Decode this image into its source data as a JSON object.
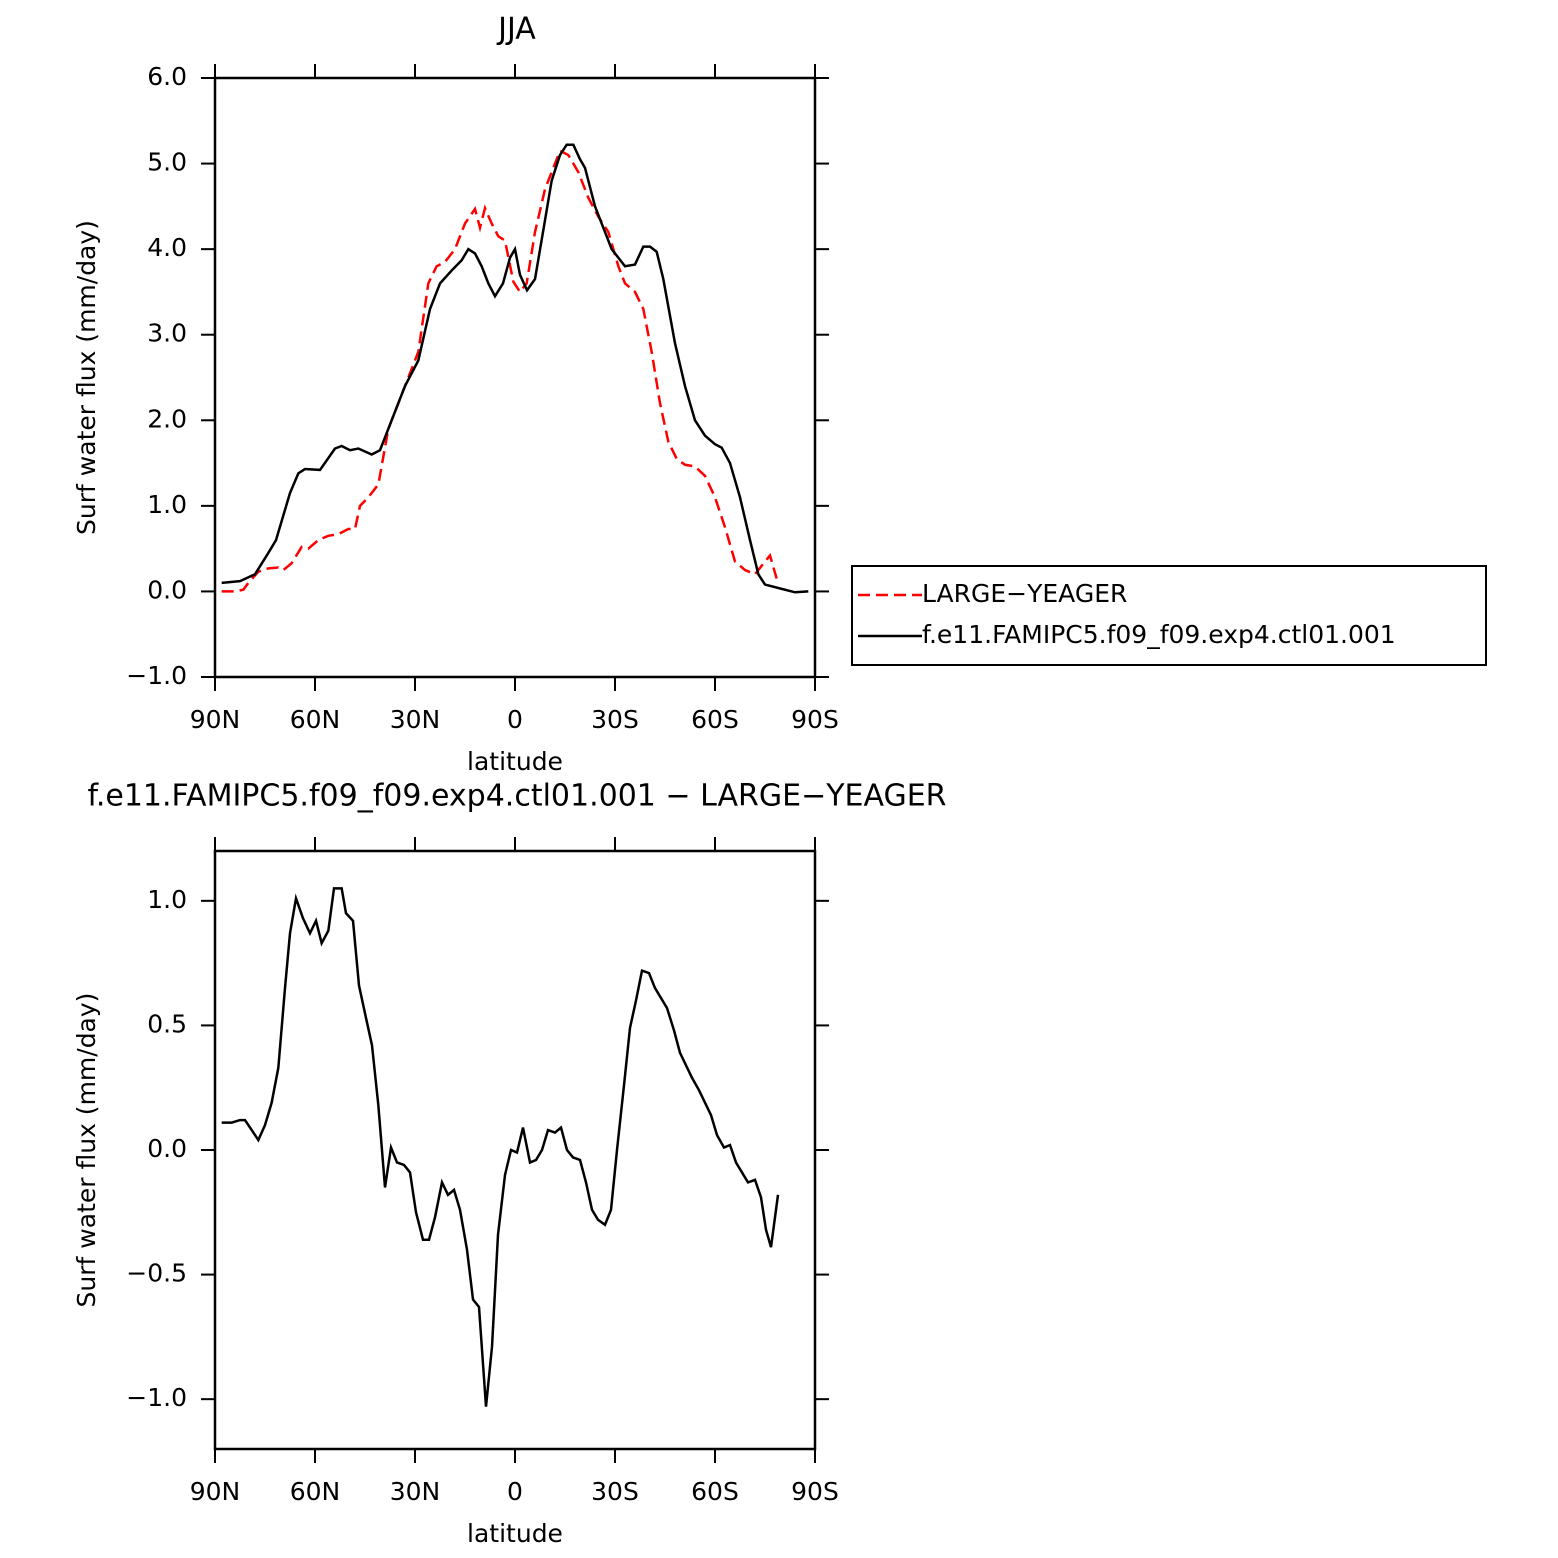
{
  "chart_data": [
    {
      "type": "line",
      "title": "JJA",
      "xlabel": "latitude",
      "ylabel": "Surf water flux (mm/day)",
      "xlim": [
        90,
        -90
      ],
      "xticks": [
        {
          "value": 90,
          "label": "90N"
        },
        {
          "value": 60,
          "label": "60N"
        },
        {
          "value": 30,
          "label": "30N"
        },
        0,
        {
          "value": -30,
          "label": "30S"
        },
        {
          "value": -60,
          "label": "60S"
        },
        {
          "value": -90,
          "label": "90S"
        }
      ],
      "ylim": [
        -1,
        6
      ],
      "yticks": [
        {
          "value": -1,
          "label": "−1.0"
        },
        {
          "value": 0,
          "label": "0.0"
        },
        {
          "value": 1,
          "label": "1.0"
        },
        {
          "value": 2,
          "label": "2.0"
        },
        {
          "value": 3,
          "label": "3.0"
        },
        {
          "value": 4,
          "label": "4.0"
        },
        {
          "value": 5,
          "label": "5.0"
        },
        {
          "value": 6,
          "label": "6.0"
        }
      ],
      "legend": "right",
      "series": [
        {
          "name": "LARGE−YEAGER",
          "color": "#ff0000",
          "dashed": true,
          "x": [
            88,
            84,
            81.5,
            80,
            77,
            74,
            71,
            69.5,
            67,
            64,
            62,
            59,
            56,
            53,
            50,
            48,
            46.5,
            44,
            41,
            38,
            35,
            32,
            29,
            26,
            23.5,
            21,
            18,
            15,
            12,
            10.5,
            9,
            7,
            5,
            3,
            0.5,
            -1.5,
            -3.5,
            -6,
            -9,
            -12,
            -13.5,
            -16,
            -19,
            -22,
            -25,
            -28,
            -31,
            -33,
            -36,
            -38.5,
            -41,
            -43.5,
            -46,
            -48.5,
            -51,
            -54,
            -57,
            -60,
            -63,
            -66,
            -69,
            -72,
            -75,
            -76.5,
            -78.5
          ],
          "values": [
            0,
            0,
            0.02,
            0.1,
            0.23,
            0.27,
            0.28,
            0.25,
            0.33,
            0.52,
            0.5,
            0.6,
            0.65,
            0.67,
            0.73,
            0.73,
            1.0,
            1.1,
            1.25,
            1.9,
            2.2,
            2.5,
            2.8,
            3.6,
            3.8,
            3.85,
            4.0,
            4.3,
            4.47,
            4.25,
            4.48,
            4.3,
            4.15,
            4.1,
            3.62,
            3.5,
            3.6,
            4.2,
            4.7,
            5.0,
            5.15,
            5.1,
            4.9,
            4.6,
            4.38,
            4.2,
            3.8,
            3.6,
            3.5,
            3.3,
            2.8,
            2.2,
            1.75,
            1.55,
            1.48,
            1.46,
            1.35,
            1.1,
            0.75,
            0.35,
            0.25,
            0.2,
            0.35,
            0.42,
            0.15
          ]
        },
        {
          "name": "f.e11.FAMIPC5.f09_f09.exp4.ctl01.001",
          "color": "#000000",
          "dashed": false,
          "x": [
            88,
            82.5,
            78,
            74,
            71.7,
            67.5,
            65,
            63,
            58.5,
            54,
            52,
            49.5,
            47,
            43,
            40.5,
            37.5,
            33,
            29,
            25.5,
            22.5,
            19,
            16,
            14,
            12,
            10,
            8,
            6,
            3.6,
            1.5,
            0,
            -1.5,
            -3.6,
            -6,
            -8.4,
            -11,
            -13.5,
            -15.5,
            -17.5,
            -19.5,
            -21,
            -24,
            -27,
            -29,
            -33,
            -36,
            -38.5,
            -40.5,
            -42.5,
            -44.5,
            -48,
            -51,
            -54,
            -57,
            -60,
            -62,
            -64.5,
            -67.5,
            -70.5,
            -73,
            -75,
            -80,
            -84,
            -88
          ],
          "values": [
            0.1,
            0.12,
            0.2,
            0.45,
            0.6,
            1.15,
            1.38,
            1.43,
            1.42,
            1.67,
            1.7,
            1.65,
            1.67,
            1.6,
            1.65,
            1.95,
            2.4,
            2.7,
            3.3,
            3.6,
            3.75,
            3.87,
            4.0,
            3.95,
            3.8,
            3.6,
            3.45,
            3.6,
            3.9,
            4.0,
            3.7,
            3.52,
            3.65,
            4.2,
            4.8,
            5.1,
            5.22,
            5.22,
            5.05,
            4.95,
            4.5,
            4.2,
            4.0,
            3.8,
            3.82,
            4.03,
            4.03,
            3.97,
            3.65,
            2.9,
            2.4,
            2.0,
            1.82,
            1.72,
            1.68,
            1.5,
            1.1,
            0.6,
            0.2,
            0.08,
            0.03,
            -0.01,
            0.0
          ]
        }
      ]
    },
    {
      "type": "line",
      "title": "f.e11.FAMIPC5.f09_f09.exp4.ctl01.001 − LARGE−YEAGER",
      "xlabel": "latitude",
      "ylabel": "Surf water flux (mm/day)",
      "xlim": [
        90,
        -90
      ],
      "xticks": [
        {
          "value": 90,
          "label": "90N"
        },
        {
          "value": 60,
          "label": "60N"
        },
        {
          "value": 30,
          "label": "30N"
        },
        0,
        {
          "value": -30,
          "label": "30S"
        },
        {
          "value": -60,
          "label": "60S"
        },
        {
          "value": -90,
          "label": "90S"
        }
      ],
      "ylim": [
        -1.2,
        1.2
      ],
      "yticks": [
        {
          "value": -1,
          "label": "−1.0"
        },
        {
          "value": -0.5,
          "label": "−0.5"
        },
        {
          "value": 0,
          "label": "0.0"
        },
        0.5,
        {
          "value": 1,
          "label": "1.0"
        }
      ],
      "series": [
        {
          "color": "#000000",
          "dashed": false,
          "x": [
            88,
            85,
            82.5,
            81,
            77,
            75,
            73,
            71,
            69,
            67.5,
            65.7,
            63.6,
            61.5,
            59.7,
            58,
            56,
            54.3,
            52,
            50.7,
            48.6,
            46.8,
            44.7,
            42.9,
            41,
            39,
            37.2,
            35.4,
            33.3,
            31.5,
            29.7,
            27.6,
            25.8,
            24,
            21.9,
            20.1,
            18.3,
            16.5,
            14.4,
            12.6,
            10.8,
            8.7,
            6.9,
            5.1,
            3,
            1.2,
            -0.6,
            -2.4,
            -4.5,
            -6.3,
            -8.1,
            -9.9,
            -12,
            -13.8,
            -15.6,
            -17.4,
            -19.5,
            -21.3,
            -23.1,
            -24.9,
            -27,
            -28.8,
            -30.6,
            -32.7,
            -34.5,
            -36.3,
            -38.1,
            -40.2,
            -42,
            -43.8,
            -45.6,
            -47.7,
            -49.5,
            -51.3,
            -53.1,
            -55.2,
            -57,
            -58.8,
            -60.6,
            -62.7,
            -64.5,
            -66.3,
            -68.1,
            -69.9,
            -72,
            -73.8,
            -75.3,
            -76.8,
            -78.9
          ],
          "values": [
            0.11,
            0.11,
            0.12,
            0.12,
            0.04,
            0.1,
            0.19,
            0.33,
            0.65,
            0.87,
            1.01,
            0.93,
            0.87,
            0.92,
            0.83,
            0.88,
            1.05,
            1.05,
            0.95,
            0.92,
            0.66,
            0.53,
            0.42,
            0.18,
            -0.15,
            0.01,
            -0.05,
            -0.06,
            -0.09,
            -0.25,
            -0.36,
            -0.36,
            -0.27,
            -0.13,
            -0.18,
            -0.16,
            -0.24,
            -0.4,
            -0.6,
            -0.63,
            -1.03,
            -0.79,
            -0.34,
            -0.1,
            0.0,
            -0.01,
            0.09,
            -0.05,
            -0.04,
            0.0,
            0.08,
            0.07,
            0.09,
            0.0,
            -0.03,
            -0.04,
            -0.13,
            -0.24,
            -0.28,
            -0.3,
            -0.24,
            0.0,
            0.26,
            0.49,
            0.6,
            0.72,
            0.71,
            0.65,
            0.61,
            0.57,
            0.48,
            0.39,
            0.34,
            0.29,
            0.24,
            0.19,
            0.14,
            0.06,
            0.01,
            0.02,
            -0.05,
            -0.09,
            -0.13,
            -0.12,
            -0.19,
            -0.32,
            -0.39,
            -0.18
          ]
        }
      ]
    }
  ]
}
